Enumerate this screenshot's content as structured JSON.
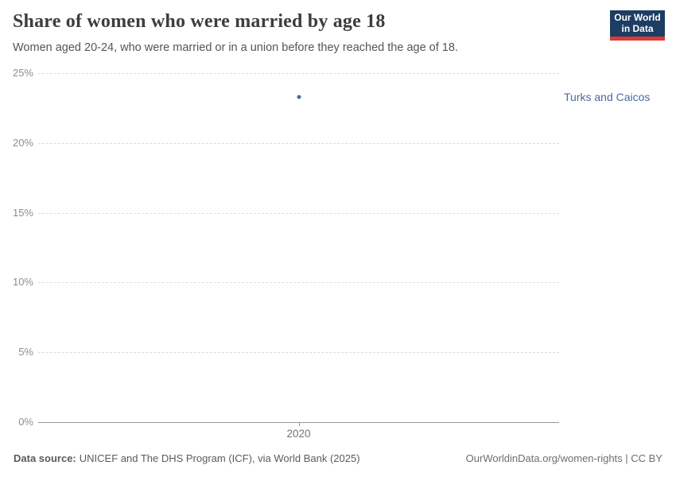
{
  "header": {
    "title": "Share of women who were married by age 18",
    "subtitle": "Women aged 20-24, who were married or in a union before they reached the age of 18.",
    "logo": {
      "line1": "Our World",
      "line2": "in Data",
      "bg_color": "#1d3d63",
      "accent_color": "#dc3a33"
    }
  },
  "chart_data": {
    "type": "scatter",
    "title": "Share of women who were married by age 18",
    "x": [
      2020
    ],
    "series": [
      {
        "name": "Turks and Caicos",
        "values": [
          23.3
        ]
      }
    ],
    "xticks": [
      2020
    ],
    "ylim": [
      0,
      25
    ],
    "yticks": [
      0,
      5,
      10,
      15,
      20,
      25
    ],
    "ytick_suffix": "%",
    "grid": "horizontal-dashed",
    "legend_position": "right-of-point",
    "point_color": "#4c6a9e",
    "label_color": "#4c6a9e"
  },
  "footer": {
    "source_label": "Data source:",
    "source_text": "UNICEF and The DHS Program (ICF), via World Bank (2025)",
    "right_text": "OurWorldinData.org/women-rights | CC BY"
  }
}
